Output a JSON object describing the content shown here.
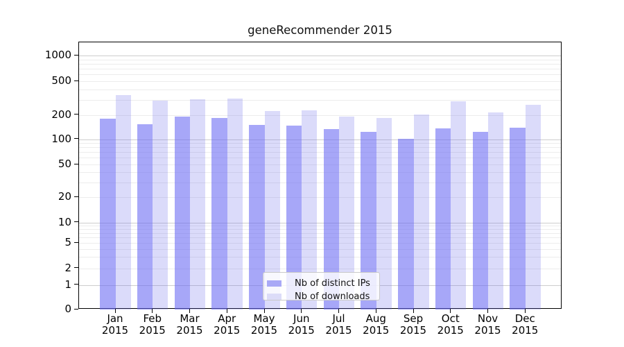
{
  "chart_data": {
    "type": "bar",
    "title": "geneRecommender 2015",
    "categories": [
      "Jan",
      "Feb",
      "Mar",
      "Apr",
      "May",
      "Jun",
      "Jul",
      "Aug",
      "Sep",
      "Oct",
      "Nov",
      "Dec"
    ],
    "year_label": "2015",
    "series": [
      {
        "name": "Nb of distinct IPs",
        "color": "#a9a9f6",
        "values": [
          178,
          154,
          190,
          182,
          149,
          147,
          133,
          124,
          102,
          136,
          123,
          140
        ]
      },
      {
        "name": "Nb of downloads",
        "color": "#dcdcf8",
        "values": [
          342,
          293,
          306,
          309,
          222,
          226,
          190,
          183,
          202,
          287,
          214,
          263
        ]
      }
    ],
    "xlabel": "",
    "ylabel": "",
    "y_ticks": [
      0,
      1,
      2,
      5,
      10,
      20,
      50,
      100,
      200,
      500,
      1000
    ],
    "y_scale": "symlog",
    "ylim": [
      0,
      1400
    ],
    "grid": true,
    "legend_position": "lower-center"
  },
  "colors": {
    "bar_ips": "#a9a9f6",
    "bar_downloads": "#dcdcf8",
    "grid_major": "#cdcdcd",
    "grid_minor": "#ececec",
    "axis": "#000000",
    "background": "#ffffff"
  }
}
